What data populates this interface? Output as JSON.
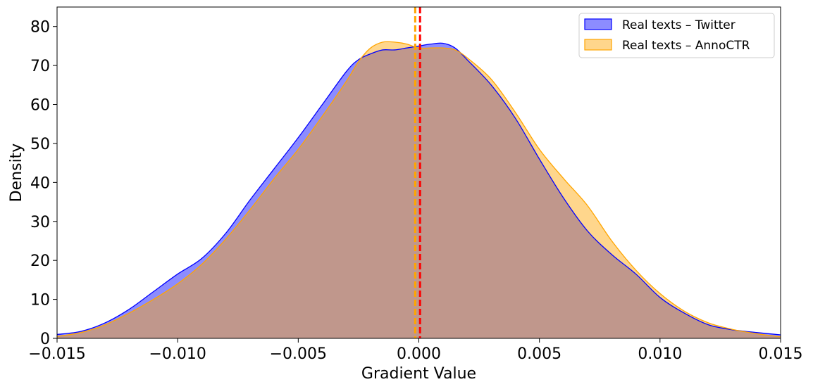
{
  "chart_data": {
    "type": "area",
    "title": "",
    "xlabel": "Gradient Value",
    "ylabel": "Density",
    "xlim": [
      -0.015,
      0.015
    ],
    "ylim": [
      0,
      85
    ],
    "xticks": [
      -0.015,
      -0.01,
      -0.005,
      0.0,
      0.005,
      0.01,
      0.015
    ],
    "xtick_labels": [
      "−0.015",
      "−0.010",
      "−0.005",
      "0.000",
      "0.005",
      "0.010",
      "0.015"
    ],
    "yticks": [
      0,
      10,
      20,
      30,
      40,
      50,
      60,
      70,
      80
    ],
    "ytick_labels": [
      "0",
      "10",
      "20",
      "30",
      "40",
      "50",
      "60",
      "70",
      "80"
    ],
    "grid": false,
    "legend_position": "top-right",
    "series": [
      {
        "name": "Real texts – Twitter",
        "color": "#0000ff",
        "fill_color": "#0000ff",
        "fill_opacity": 0.45,
        "mean": 5e-05,
        "x": [
          -0.015,
          -0.014,
          -0.013,
          -0.012,
          -0.011,
          -0.01,
          -0.009,
          -0.008,
          -0.007,
          -0.006,
          -0.005,
          -0.004,
          -0.003,
          -0.0025,
          -0.002,
          -0.0015,
          -0.001,
          -0.0005,
          0.0,
          0.0005,
          0.001,
          0.0015,
          0.002,
          0.003,
          0.004,
          0.005,
          0.006,
          0.007,
          0.008,
          0.009,
          0.01,
          0.011,
          0.012,
          0.013,
          0.014,
          0.015
        ],
        "y": [
          1.0,
          1.8,
          4.0,
          7.5,
          12.0,
          16.5,
          20.5,
          27.0,
          35.5,
          43.5,
          51.5,
          60.0,
          68.5,
          71.5,
          73.0,
          74.0,
          74.0,
          74.5,
          75.0,
          75.5,
          75.7,
          74.5,
          71.5,
          65.0,
          56.5,
          46.0,
          36.0,
          27.5,
          21.5,
          16.5,
          10.5,
          6.5,
          3.5,
          2.2,
          1.5,
          0.9
        ]
      },
      {
        "name": "Real texts – AnnoCTR",
        "color": "#ffa500",
        "fill_color": "#ffa500",
        "fill_opacity": 0.45,
        "mean": -0.00015,
        "x": [
          -0.015,
          -0.014,
          -0.013,
          -0.012,
          -0.011,
          -0.01,
          -0.009,
          -0.008,
          -0.007,
          -0.006,
          -0.005,
          -0.004,
          -0.003,
          -0.0025,
          -0.002,
          -0.0015,
          -0.001,
          -0.0005,
          0.0,
          0.0005,
          0.001,
          0.0015,
          0.002,
          0.003,
          0.004,
          0.005,
          0.006,
          0.007,
          0.008,
          0.009,
          0.01,
          0.011,
          0.012,
          0.013,
          0.014,
          0.015
        ],
        "y": [
          0.5,
          1.5,
          3.5,
          6.5,
          10.0,
          14.0,
          19.0,
          25.5,
          33.0,
          41.0,
          48.5,
          57.0,
          66.0,
          71.0,
          74.5,
          76.0,
          76.0,
          75.5,
          74.5,
          74.5,
          74.5,
          74.0,
          72.0,
          66.5,
          58.0,
          48.5,
          41.0,
          34.0,
          25.0,
          17.5,
          11.5,
          7.0,
          4.0,
          2.3,
          1.2,
          0.4
        ]
      }
    ]
  }
}
